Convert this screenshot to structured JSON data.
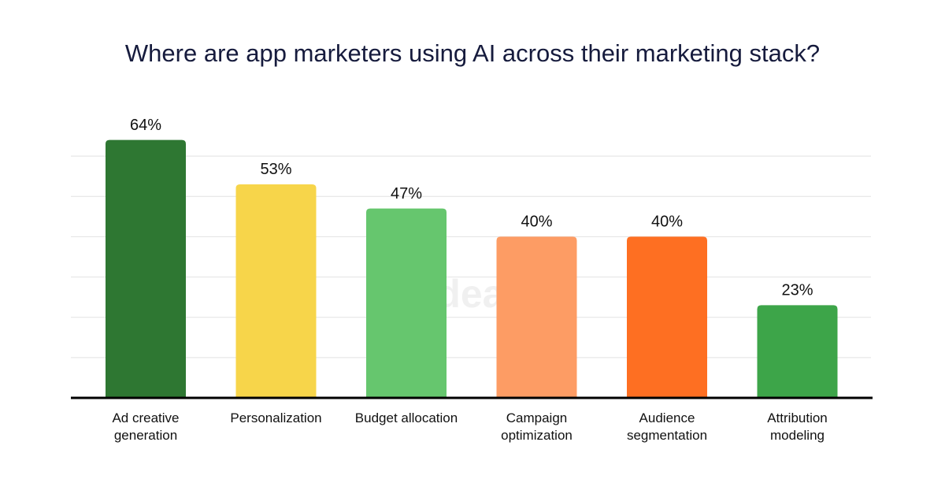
{
  "chart_data": {
    "type": "bar",
    "title": "Where are app marketers using AI across their marketing stack?",
    "watermark": "bidease",
    "categories": [
      "Ad creative generation",
      "Personalization",
      "Budget allocation",
      "Campaign optimization",
      "Audience segmentation",
      "Attribution modeling"
    ],
    "values": [
      64,
      53,
      47,
      40,
      40,
      23
    ],
    "value_labels": [
      "64%",
      "53%",
      "47%",
      "40%",
      "40%",
      "23%"
    ],
    "colors": [
      "#2e7732",
      "#f7d54a",
      "#66c66e",
      "#fd9c64",
      "#fe6f22",
      "#3da549"
    ],
    "ylim": [
      0,
      70
    ],
    "yticks": [
      0,
      10,
      20,
      30,
      40,
      50,
      60
    ],
    "grid": true
  }
}
